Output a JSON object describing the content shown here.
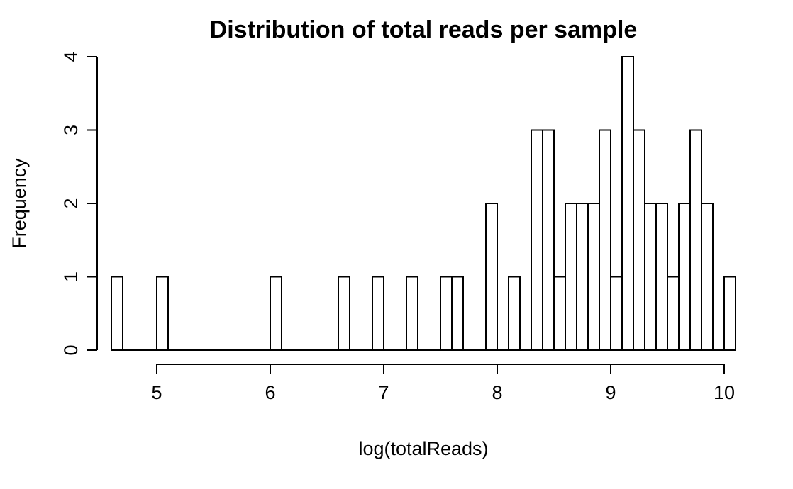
{
  "chart_data": {
    "type": "bar",
    "title": "Distribution of total reads per sample",
    "xlabel": "log(totalReads)",
    "ylabel": "Frequency",
    "bin_width": 0.1,
    "xlim": [
      4.6,
      10.1
    ],
    "ylim": [
      0,
      4
    ],
    "x_ticks": [
      5,
      6,
      7,
      8,
      9,
      10
    ],
    "y_ticks": [
      0,
      1,
      2,
      3,
      4
    ],
    "grid": false,
    "bins": [
      {
        "start": 4.6,
        "value": 1
      },
      {
        "start": 5.0,
        "value": 1
      },
      {
        "start": 6.0,
        "value": 1
      },
      {
        "start": 6.6,
        "value": 1
      },
      {
        "start": 6.9,
        "value": 1
      },
      {
        "start": 7.2,
        "value": 1
      },
      {
        "start": 7.5,
        "value": 1
      },
      {
        "start": 7.6,
        "value": 1
      },
      {
        "start": 7.9,
        "value": 2
      },
      {
        "start": 8.1,
        "value": 1
      },
      {
        "start": 8.3,
        "value": 3
      },
      {
        "start": 8.4,
        "value": 3
      },
      {
        "start": 8.5,
        "value": 1
      },
      {
        "start": 8.6,
        "value": 2
      },
      {
        "start": 8.7,
        "value": 2
      },
      {
        "start": 8.8,
        "value": 2
      },
      {
        "start": 8.9,
        "value": 3
      },
      {
        "start": 9.0,
        "value": 1
      },
      {
        "start": 9.1,
        "value": 4
      },
      {
        "start": 9.2,
        "value": 3
      },
      {
        "start": 9.3,
        "value": 2
      },
      {
        "start": 9.4,
        "value": 2
      },
      {
        "start": 9.5,
        "value": 1
      },
      {
        "start": 9.6,
        "value": 2
      },
      {
        "start": 9.7,
        "value": 3
      },
      {
        "start": 9.8,
        "value": 2
      },
      {
        "start": 10.0,
        "value": 1
      }
    ]
  }
}
